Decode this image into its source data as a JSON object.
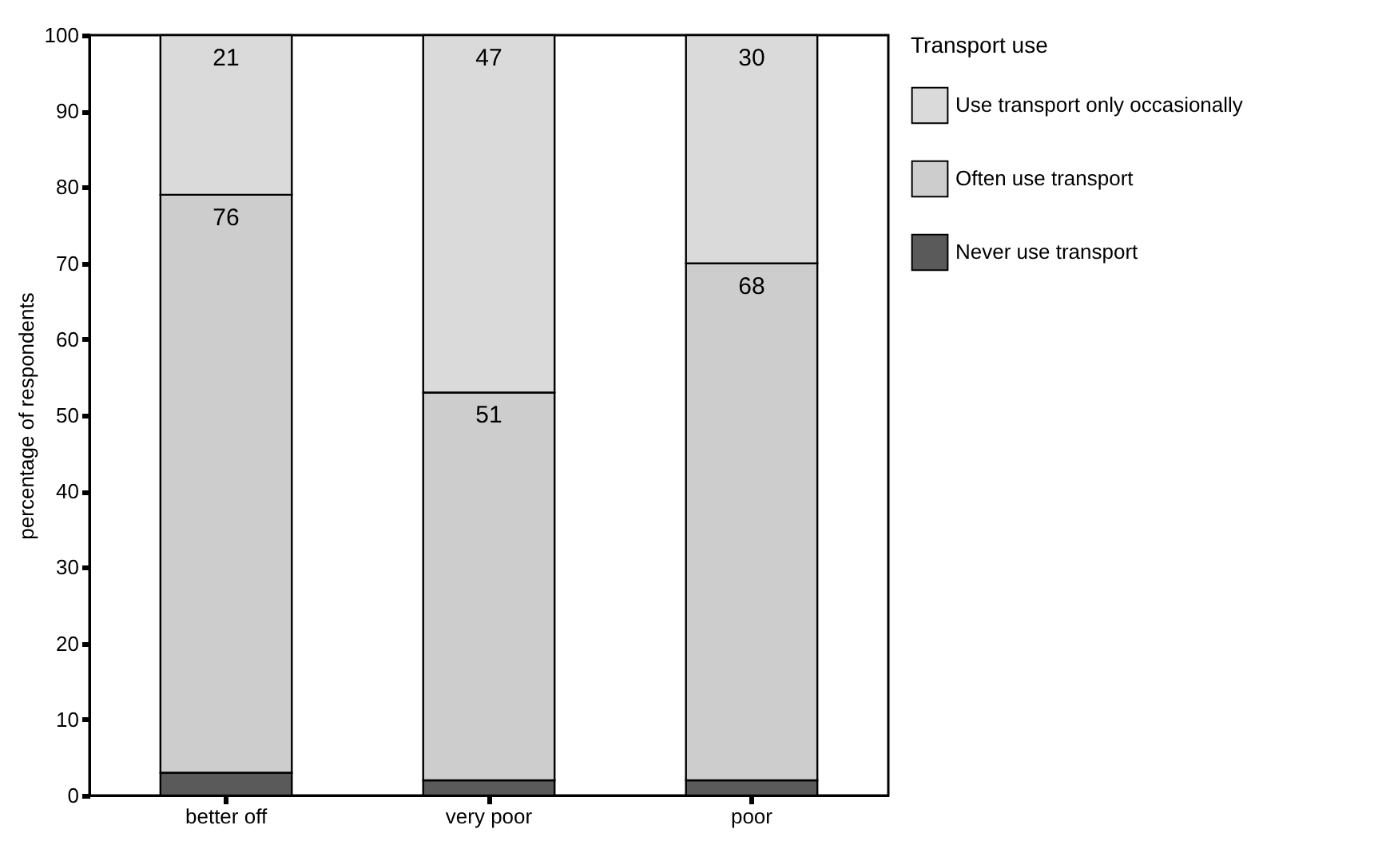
{
  "chart_data": {
    "type": "bar",
    "stacked": true,
    "ylabel": "percentage of respondents",
    "legend_title": "Transport use",
    "categories": [
      "better off",
      "very poor",
      "poor"
    ],
    "series": [
      {
        "name": "Never use transport",
        "color": "#5a5a5a",
        "values": [
          3,
          2,
          2
        ]
      },
      {
        "name": "Often use transport",
        "color": "#cdcdcd",
        "values": [
          76,
          51,
          68
        ],
        "value_labels": [
          "76",
          "51",
          "68"
        ]
      },
      {
        "name": "Use transport only occasionally",
        "color": "#dadada",
        "values": [
          21,
          47,
          30
        ],
        "value_labels": [
          "21",
          "47",
          "30"
        ]
      }
    ],
    "ylim": [
      0,
      100
    ],
    "yticks": [
      0,
      10,
      20,
      30,
      40,
      50,
      60,
      70,
      80,
      90,
      100
    ],
    "grid": false,
    "legend": "right"
  }
}
